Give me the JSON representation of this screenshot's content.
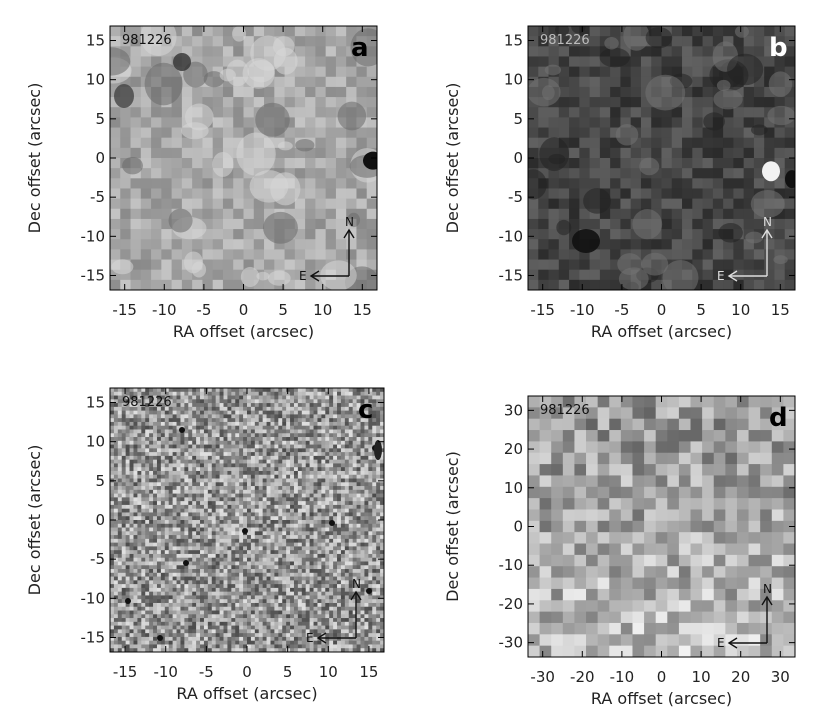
{
  "panels": [
    {
      "id": "a",
      "panel_letter": "a",
      "date_label": "981226",
      "xlabel": "RA offset (arcsec)",
      "ylabel": "Dec offset (arcsec)",
      "x_ticks": [
        "-15",
        "-10",
        "-5",
        "0",
        "5",
        "10",
        "15"
      ],
      "y_ticks": [
        "15",
        "10",
        "5",
        "0",
        "-5",
        "-10",
        "-15"
      ],
      "compass": {
        "north": "N",
        "east": "E"
      },
      "style": "smooth-light"
    },
    {
      "id": "b",
      "panel_letter": "b",
      "date_label": "981226",
      "xlabel": "RA offset (arcsec)",
      "ylabel": "Dec offset (arcsec)",
      "x_ticks": [
        "-15",
        "-10",
        "-5",
        "0",
        "5",
        "10",
        "15"
      ],
      "y_ticks": [
        "15",
        "10",
        "5",
        "0",
        "-5",
        "-10",
        "-15"
      ],
      "compass": {
        "north": "N",
        "east": "E"
      },
      "style": "smooth-dark"
    },
    {
      "id": "c",
      "panel_letter": "c",
      "date_label": "981226",
      "xlabel": "RA offset (arcsec)",
      "ylabel": "Dec offset (arcsec)",
      "x_ticks": [
        "-15",
        "-10",
        "-5",
        "0",
        "5",
        "10",
        "15"
      ],
      "y_ticks": [
        "15",
        "10",
        "5",
        "0",
        "-5",
        "-10",
        "-15"
      ],
      "compass": {
        "north": "N",
        "east": "E"
      },
      "style": "grain"
    },
    {
      "id": "d",
      "panel_letter": "d",
      "date_label": "981226",
      "xlabel": "RA offset (arcsec)",
      "ylabel": "Dec offset (arcsec)",
      "x_ticks": [
        "-30",
        "-20",
        "-10",
        "0",
        "10",
        "20",
        "30"
      ],
      "y_ticks": [
        "30",
        "20",
        "10",
        "0",
        "-10",
        "-20",
        "-30"
      ],
      "compass": {
        "north": "N",
        "east": "E"
      },
      "style": "pixel"
    }
  ]
}
